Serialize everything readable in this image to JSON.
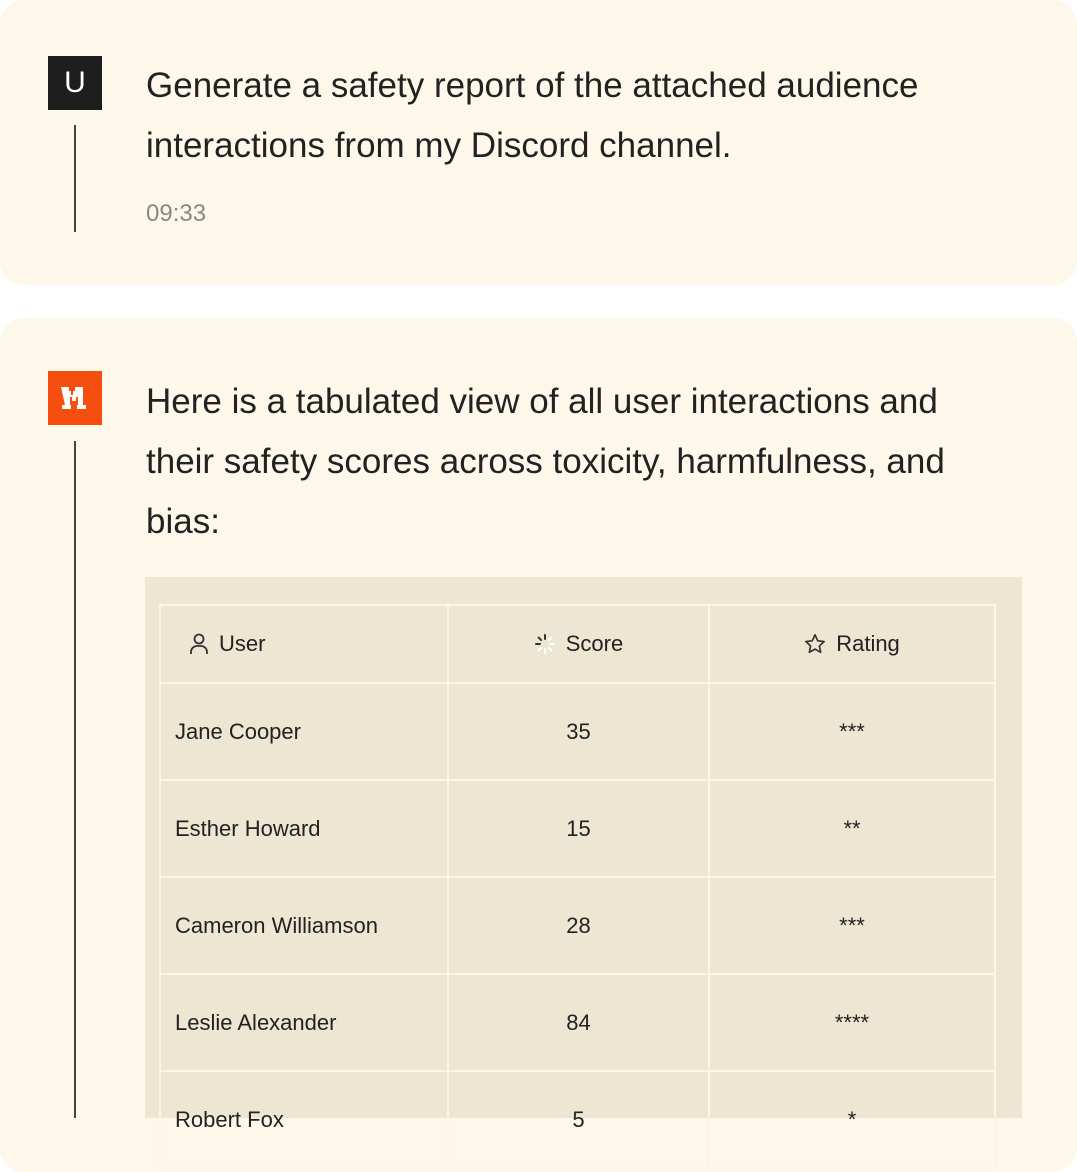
{
  "user_message": {
    "avatar": "U",
    "text_line1": "Generate a safety report of the attached audience",
    "text_line2": "interactions from my Discord channel.",
    "time": "09:33"
  },
  "assistant_message": {
    "line1": "Here is a tabulated view of all user interactions and",
    "line2": "their safety scores across toxicity, harmfulness, and",
    "line3": "bias:",
    "brand_color": "#f54e0f"
  },
  "table": {
    "headers": [
      {
        "label": "User",
        "icon": "user-icon"
      },
      {
        "label": "Score",
        "icon": "loader-icon"
      },
      {
        "label": "Rating",
        "icon": "star-icon"
      }
    ],
    "rows": [
      [
        "Jane Cooper",
        "35",
        "***"
      ],
      [
        "Esther Howard",
        "15",
        "**"
      ],
      [
        "Cameron Williamson",
        "28",
        "***"
      ],
      [
        "Leslie Alexander",
        "84",
        "****"
      ],
      [
        "Robert Fox",
        "5",
        "*"
      ]
    ]
  }
}
